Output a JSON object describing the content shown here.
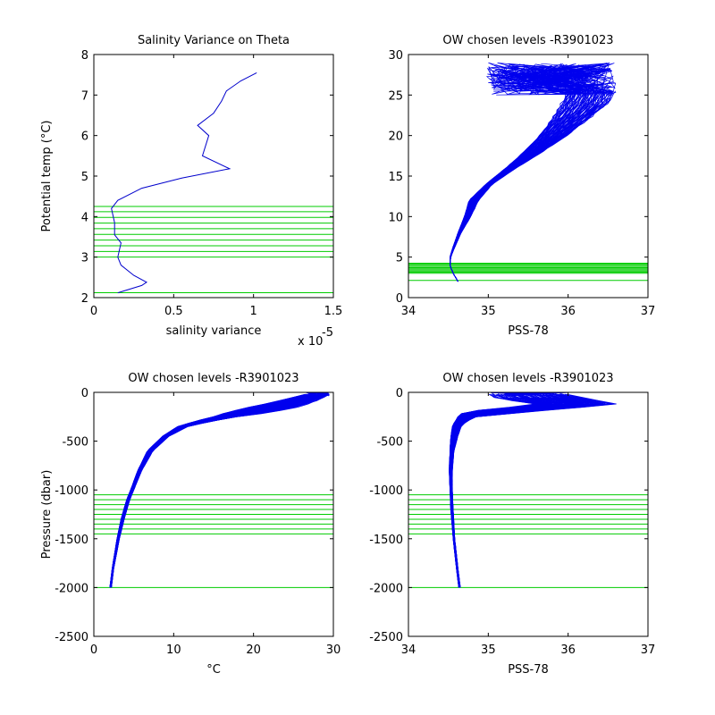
{
  "figure": {
    "panels": [
      {
        "id": "salvar",
        "title": "Salinity Variance on Theta",
        "xlabel": "salinity variance",
        "ylabel": "Potential temp (°C)",
        "xticks": [
          "0",
          "0.5",
          "1",
          "1.5"
        ],
        "yticks": [
          "2",
          "3",
          "4",
          "5",
          "6",
          "7",
          "8"
        ],
        "exponent_label": "x 10",
        "exponent_power": "-5"
      },
      {
        "id": "theta_sal",
        "title": "OW chosen levels -R3901023",
        "xlabel": "PSS-78",
        "ylabel": "",
        "xticks": [
          "34",
          "35",
          "36",
          "37"
        ],
        "yticks": [
          "0",
          "5",
          "10",
          "15",
          "20",
          "25",
          "30"
        ]
      },
      {
        "id": "pres_temp",
        "title": "OW chosen levels -R3901023",
        "xlabel": "°C",
        "ylabel": "Pressure (dbar)",
        "xticks": [
          "0",
          "10",
          "20",
          "30"
        ],
        "yticks": [
          "0",
          "-500",
          "-1000",
          "-1500",
          "-2000",
          "-2500"
        ]
      },
      {
        "id": "pres_sal",
        "title": "OW chosen levels -R3901023",
        "xlabel": "PSS-78",
        "ylabel": "",
        "xticks": [
          "34",
          "35",
          "36",
          "37"
        ],
        "yticks": [
          "0",
          "-500",
          "-1000",
          "-1500",
          "-2000",
          "-2500"
        ]
      }
    ]
  },
  "chart_data": [
    {
      "type": "line",
      "title": "Salinity Variance on Theta",
      "xlabel": "salinity variance",
      "ylabel": "Potential temp (°C)",
      "xlim": [
        0,
        1.5
      ],
      "ylim": [
        2,
        8
      ],
      "x_scale_factor": "x 10^-5",
      "series_color": "#0000cc",
      "series": [
        {
          "x": [
            0.15,
            0.3,
            0.33,
            0.25,
            0.17,
            0.15,
            0.17,
            0.13,
            0.13,
            0.11,
            0.15,
            0.3,
            0.55,
            0.85,
            0.68,
            0.72,
            0.65,
            0.75,
            0.8,
            0.83,
            0.92,
            1.02
          ],
          "y": [
            2.12,
            2.3,
            2.38,
            2.55,
            2.8,
            3.0,
            3.35,
            3.55,
            3.85,
            4.2,
            4.4,
            4.7,
            4.95,
            5.18,
            5.5,
            6.0,
            6.25,
            6.55,
            6.85,
            7.1,
            7.35,
            7.55
          ]
        }
      ],
      "reference_lines": {
        "orientation": "horizontal",
        "color": "#00cc00",
        "y": [
          2.12,
          3.0,
          3.14,
          3.28,
          3.42,
          3.56,
          3.7,
          3.84,
          3.98,
          4.12,
          4.25
        ]
      }
    },
    {
      "type": "line",
      "title": "OW chosen levels -R3901023",
      "xlabel": "PSS-78",
      "ylabel": "",
      "xlim": [
        34,
        37
      ],
      "ylim": [
        0,
        30
      ],
      "series_color": "#0000ee",
      "envelope_profile": {
        "y": [
          2,
          3,
          4,
          5,
          6,
          8,
          10,
          12,
          14,
          16,
          18,
          20,
          22,
          24,
          25.5
        ],
        "x_low": [
          34.62,
          34.56,
          34.52,
          34.52,
          34.55,
          34.62,
          34.7,
          34.76,
          34.97,
          35.22,
          35.45,
          35.64,
          35.8,
          35.92,
          36.0
        ],
        "x_high": [
          34.62,
          34.56,
          34.52,
          34.53,
          34.57,
          34.66,
          34.78,
          34.88,
          35.05,
          35.35,
          35.68,
          35.98,
          36.25,
          36.5,
          36.58
        ]
      },
      "surface_scatter_region": {
        "x_range": [
          34.98,
          36.6
        ],
        "y_range": [
          25.0,
          29.0
        ]
      },
      "reference_lines": {
        "orientation": "horizontal",
        "color": "#00cc00",
        "y": [
          2.12,
          3.0,
          3.14,
          3.28,
          3.42,
          3.56,
          3.7,
          3.84,
          3.98,
          4.12,
          4.25
        ]
      }
    },
    {
      "type": "line",
      "title": "OW chosen levels -R3901023",
      "xlabel": "°C",
      "ylabel": "Pressure (dbar)",
      "xlim": [
        0,
        30
      ],
      "ylim": [
        -2500,
        0
      ],
      "series_color": "#0000ee",
      "envelope_profile": {
        "y": [
          -2000,
          -1800,
          -1500,
          -1300,
          -1100,
          -1000,
          -800,
          -600,
          -450,
          -350,
          -300,
          -250,
          -200,
          -150,
          -100,
          -50,
          -20
        ],
        "x_low": [
          2.0,
          2.3,
          2.9,
          3.4,
          4.1,
          4.6,
          5.5,
          6.7,
          8.6,
          10.5,
          12.5,
          15.0,
          17.0,
          19.5,
          22.5,
          25.0,
          26.5
        ],
        "x_high": [
          2.2,
          2.5,
          3.2,
          3.8,
          4.5,
          5.0,
          6.0,
          7.4,
          9.4,
          11.8,
          14.5,
          18.0,
          22.5,
          25.5,
          27.5,
          28.8,
          29.5
        ]
      },
      "reference_lines": {
        "orientation": "horizontal",
        "color": "#00cc00",
        "y": [
          -2000,
          -1450,
          -1400,
          -1350,
          -1300,
          -1250,
          -1200,
          -1150,
          -1100,
          -1050
        ]
      }
    },
    {
      "type": "line",
      "title": "OW chosen levels -R3901023",
      "xlabel": "PSS-78",
      "ylabel": "",
      "xlim": [
        34,
        37
      ],
      "ylim": [
        -2500,
        0
      ],
      "series_color": "#0000ee",
      "envelope_profile": {
        "y": [
          -2000,
          -1800,
          -1500,
          -1200,
          -1000,
          -800,
          -600,
          -450,
          -350,
          -300,
          -250,
          -200,
          -150,
          -120,
          -100,
          -60,
          -20
        ],
        "x_low": [
          34.63,
          34.6,
          34.56,
          34.53,
          34.52,
          34.51,
          34.52,
          34.53,
          34.55,
          34.58,
          34.62,
          34.68,
          35.3,
          35.6,
          35.4,
          35.1,
          35.0
        ],
        "x_high": [
          34.65,
          34.62,
          34.58,
          34.56,
          34.55,
          34.55,
          34.57,
          34.62,
          34.66,
          34.72,
          34.85,
          35.5,
          36.2,
          36.58,
          36.5,
          36.2,
          36.0
        ]
      },
      "reference_lines": {
        "orientation": "horizontal",
        "color": "#00cc00",
        "y": [
          -2000,
          -1450,
          -1400,
          -1350,
          -1300,
          -1250,
          -1200,
          -1150,
          -1100,
          -1050
        ]
      }
    }
  ]
}
